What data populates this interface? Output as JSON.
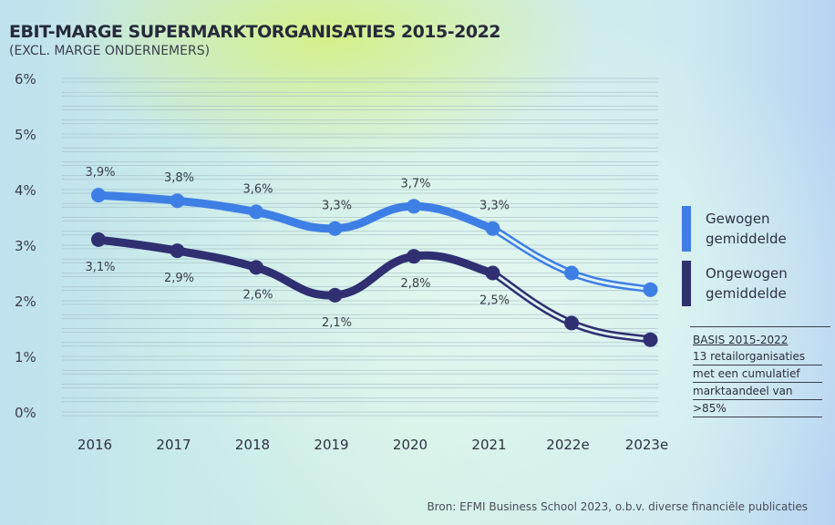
{
  "title": "EBIT-MARGE SUPERMARKTORGANISATIES 2015-2022",
  "subtitle": "(EXCL. MARGE ONDERNEMERS)",
  "legend": {
    "weighted": {
      "label": "Gewogen gemiddelde",
      "color": "#3e7fe6"
    },
    "unweighted": {
      "label": "Ongewogen gemiddelde",
      "color": "#2f2f72"
    }
  },
  "note": {
    "heading": "BASIS 2015-2022",
    "lines": [
      "13 retailorganisaties",
      "met een cumulatief",
      "marktaandeel van",
      ">85%"
    ]
  },
  "source": "Bron: EFMI Business School 2023, o.b.v. diverse financiële publicaties",
  "chart_data": {
    "type": "line",
    "categories": [
      "2016",
      "2017",
      "2018",
      "2019",
      "2020",
      "2021",
      "2022e",
      "2023e"
    ],
    "series": [
      {
        "name": "Gewogen gemiddelde",
        "color": "#3e7fe6",
        "values": [
          3.9,
          3.8,
          3.6,
          3.3,
          3.7,
          3.3,
          2.5,
          2.2
        ],
        "labels": [
          "3,9%",
          "3,8%",
          "3,6%",
          "3,3%",
          "3,7%",
          "3,3%",
          "",
          ""
        ]
      },
      {
        "name": "Ongewogen gemiddelde",
        "color": "#2f2f72",
        "values": [
          3.1,
          2.9,
          2.6,
          2.1,
          2.8,
          2.5,
          1.6,
          1.3
        ],
        "labels": [
          "3,1%",
          "2,9%",
          "2,6%",
          "2,1%",
          "2,8%",
          "2,5%",
          "",
          ""
        ]
      }
    ],
    "yticks": [
      "0%",
      "1%",
      "2%",
      "3%",
      "4%",
      "5%",
      "6%"
    ],
    "ylim": [
      0,
      6
    ],
    "grid": true,
    "legend_position": "right"
  }
}
